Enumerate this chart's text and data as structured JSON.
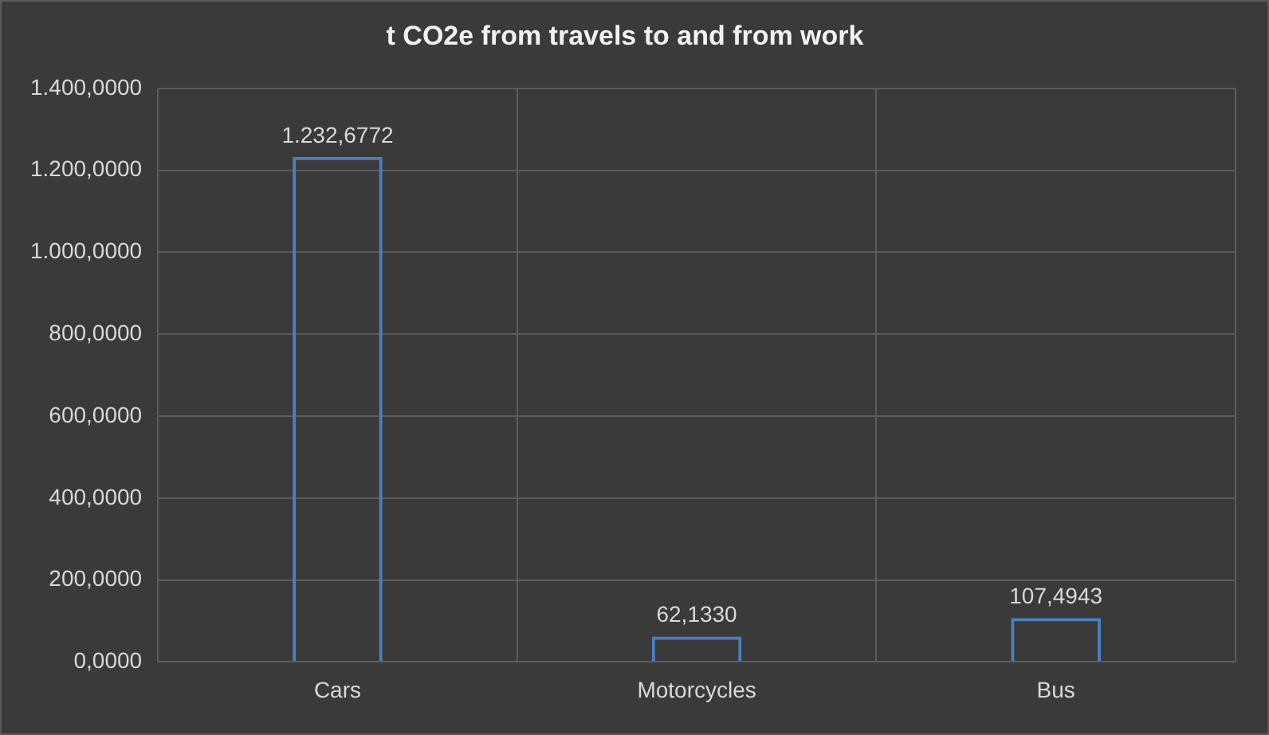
{
  "chart_data": {
    "type": "bar",
    "title": "t CO2e from travels to and from work",
    "categories": [
      "Cars",
      "Motorcycles",
      "Bus"
    ],
    "values": [
      1232.6772,
      62.133,
      107.4943
    ],
    "color": "#4a7fc1",
    "value_labels": [
      "1.232,6772",
      "62,1330",
      "107,4943"
    ],
    "ylim": [
      0,
      1400
    ],
    "yticks": [
      {
        "value": 0,
        "label": "0,0000"
      },
      {
        "value": 200,
        "label": "200,0000"
      },
      {
        "value": 400,
        "label": "400,0000"
      },
      {
        "value": 600,
        "label": "600,0000"
      },
      {
        "value": 800,
        "label": "800,0000"
      },
      {
        "value": 1000,
        "label": "1.000,0000"
      },
      {
        "value": 1200,
        "label": "1.200,0000"
      },
      {
        "value": 1400,
        "label": "1.400,0000"
      }
    ],
    "grid": true
  }
}
